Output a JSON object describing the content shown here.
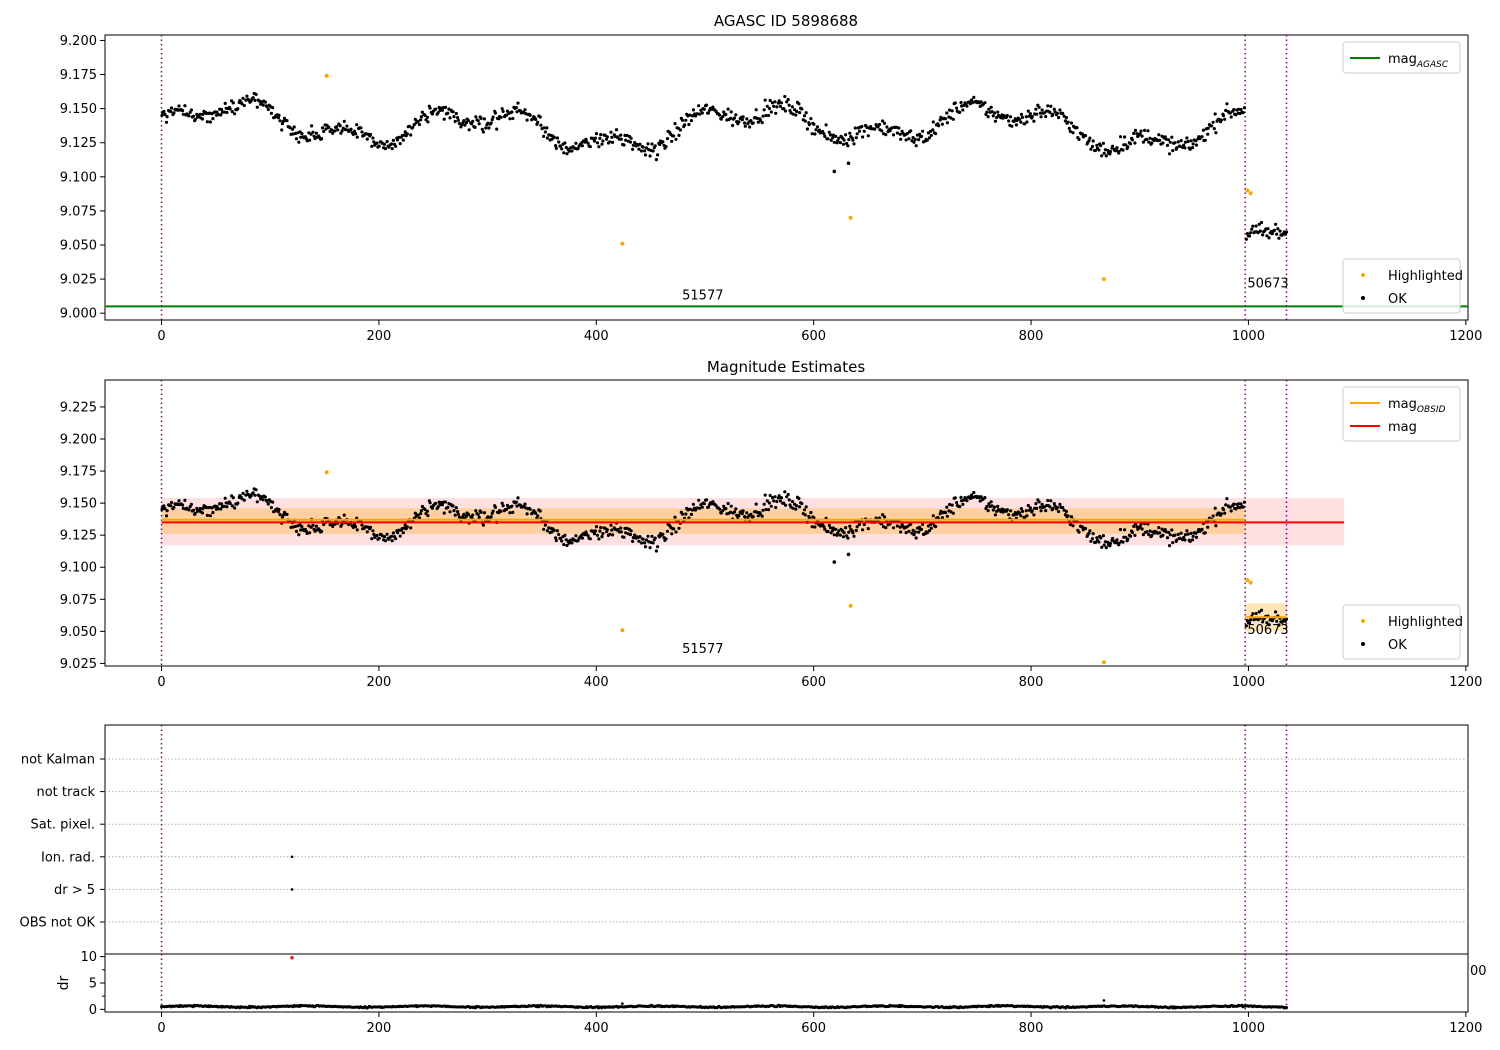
{
  "chart_data": [
    {
      "type": "scatter",
      "title": "AGASC ID 5898688",
      "xlim": [
        -52,
        1202
      ],
      "ylim": [
        8.995,
        9.204
      ],
      "xticks": [
        "0",
        "200",
        "400",
        "600",
        "800",
        "1000",
        "1200"
      ],
      "yticks": [
        "9.000",
        "9.025",
        "9.050",
        "9.075",
        "9.100",
        "9.125",
        "9.150",
        "9.175",
        "9.200"
      ],
      "vlines_x": [
        0,
        997,
        1035
      ],
      "hlines": [
        {
          "y": 9.005,
          "color": "#008000"
        }
      ],
      "obsid_labels": [
        {
          "text": "51577",
          "x": 498,
          "y": 9.01
        },
        {
          "text": "50673",
          "x": 1018,
          "y": 9.019
        }
      ],
      "legends": [
        {
          "placement": "upper-right",
          "entries": [
            {
              "label": "mag",
              "sub": "AGASC",
              "kind": "line",
              "color": "#008000"
            }
          ]
        },
        {
          "placement": "lower-right",
          "entries": [
            {
              "label": "Highlighted",
              "kind": "dot",
              "color": "#ffa500"
            },
            {
              "label": "OK",
              "kind": "dot",
              "color": "#000000"
            }
          ]
        }
      ],
      "series": [
        {
          "name": "Highlighted",
          "color": "#ffa500",
          "points": [
            [
              152,
              9.174
            ],
            [
              424,
              9.051
            ],
            [
              634,
              9.07
            ],
            [
              867,
              9.025
            ],
            [
              999,
              9.09
            ],
            [
              1002,
              9.088
            ]
          ]
        },
        {
          "name": "OK",
          "color": "#000000",
          "pattern": "mag_estimates",
          "outliers": [
            [
              619,
              9.104
            ],
            [
              632,
              9.11
            ]
          ]
        }
      ]
    },
    {
      "type": "scatter",
      "title": "Magnitude Estimates",
      "xlim": [
        -52,
        1202
      ],
      "ylim": [
        9.023,
        9.246
      ],
      "xticks": [
        "0",
        "200",
        "400",
        "600",
        "800",
        "1000",
        "1200"
      ],
      "yticks": [
        "9.025",
        "9.050",
        "9.075",
        "9.100",
        "9.125",
        "9.150",
        "9.175",
        "9.200",
        "9.225"
      ],
      "vlines_x": [
        0,
        997,
        1035
      ],
      "bands": [
        {
          "x0": 0,
          "x1": 1088,
          "y0": 9.117,
          "y1": 9.154,
          "color": "#ff0000",
          "opacity": 0.12
        },
        {
          "x0": 0,
          "x1": 997,
          "y0": 9.126,
          "y1": 9.146,
          "color": "#ffa500",
          "opacity": 0.28
        },
        {
          "x0": 997,
          "x1": 1035,
          "y0": 9.05,
          "y1": 9.072,
          "color": "#ffa500",
          "opacity": 0.28
        }
      ],
      "segments": [
        {
          "x0": 0,
          "x1": 1088,
          "y": 9.135,
          "color": "#ff0000"
        },
        {
          "x0": 0,
          "x1": 997,
          "y": 9.137,
          "color": "#ffa500"
        },
        {
          "x0": 997,
          "x1": 1035,
          "y": 9.061,
          "color": "#ffa500"
        }
      ],
      "obsid_labels": [
        {
          "text": "51577",
          "x": 498,
          "y": 9.033
        },
        {
          "text": "50673",
          "x": 1018,
          "y": 9.048
        }
      ],
      "legends": [
        {
          "placement": "upper-right",
          "entries": [
            {
              "label": "mag",
              "sub": "OBSID",
              "kind": "line",
              "color": "#ffa500"
            },
            {
              "label": "mag",
              "sub": "",
              "kind": "line",
              "color": "#ff0000"
            }
          ]
        },
        {
          "placement": "lower-right",
          "entries": [
            {
              "label": "Highlighted",
              "kind": "dot",
              "color": "#ffa500"
            },
            {
              "label": "OK",
              "kind": "dot",
              "color": "#000000"
            }
          ]
        }
      ],
      "series": [
        {
          "name": "Highlighted",
          "color": "#ffa500",
          "points": [
            [
              152,
              9.174
            ],
            [
              424,
              9.051
            ],
            [
              634,
              9.07
            ],
            [
              867,
              9.026
            ],
            [
              999,
              9.09
            ],
            [
              1002,
              9.088
            ]
          ]
        },
        {
          "name": "OK",
          "color": "#000000",
          "pattern": "mag_estimates",
          "outliers": [
            [
              619,
              9.104
            ],
            [
              632,
              9.11
            ]
          ]
        }
      ]
    },
    {
      "type": "scatter",
      "xlim": [
        -52,
        1202
      ],
      "categories": [
        "OBS not OK",
        "dr > 5",
        "Ion. rad.",
        "Sat. pixel.",
        "not track",
        "not Kalman"
      ],
      "vlines_x": [
        0,
        997,
        1035
      ],
      "series": [
        {
          "name": "flags",
          "color": "#000000",
          "points": [
            [
              120,
              "dr > 5"
            ],
            [
              120,
              "Ion. rad."
            ]
          ]
        }
      ]
    },
    {
      "type": "scatter",
      "ylabel": "dr",
      "xlim": [
        -52,
        1202
      ],
      "ylim": [
        -0.5,
        10.5
      ],
      "xticks": [
        "0",
        "200",
        "400",
        "600",
        "800",
        "1000",
        "1200"
      ],
      "yticks": [
        "0",
        "5",
        "10"
      ],
      "right_tick": "00",
      "vlines_x": [
        0,
        997,
        1035
      ],
      "series": [
        {
          "name": "dr",
          "color": "#000000",
          "range": [
            0.1,
            0.8
          ],
          "extra": [
            [
              424,
              1.1
            ],
            [
              867,
              1.7
            ]
          ]
        },
        {
          "name": "dr > 5",
          "color": "#d62728",
          "points": [
            [
              120,
              9.8
            ]
          ]
        }
      ]
    }
  ]
}
